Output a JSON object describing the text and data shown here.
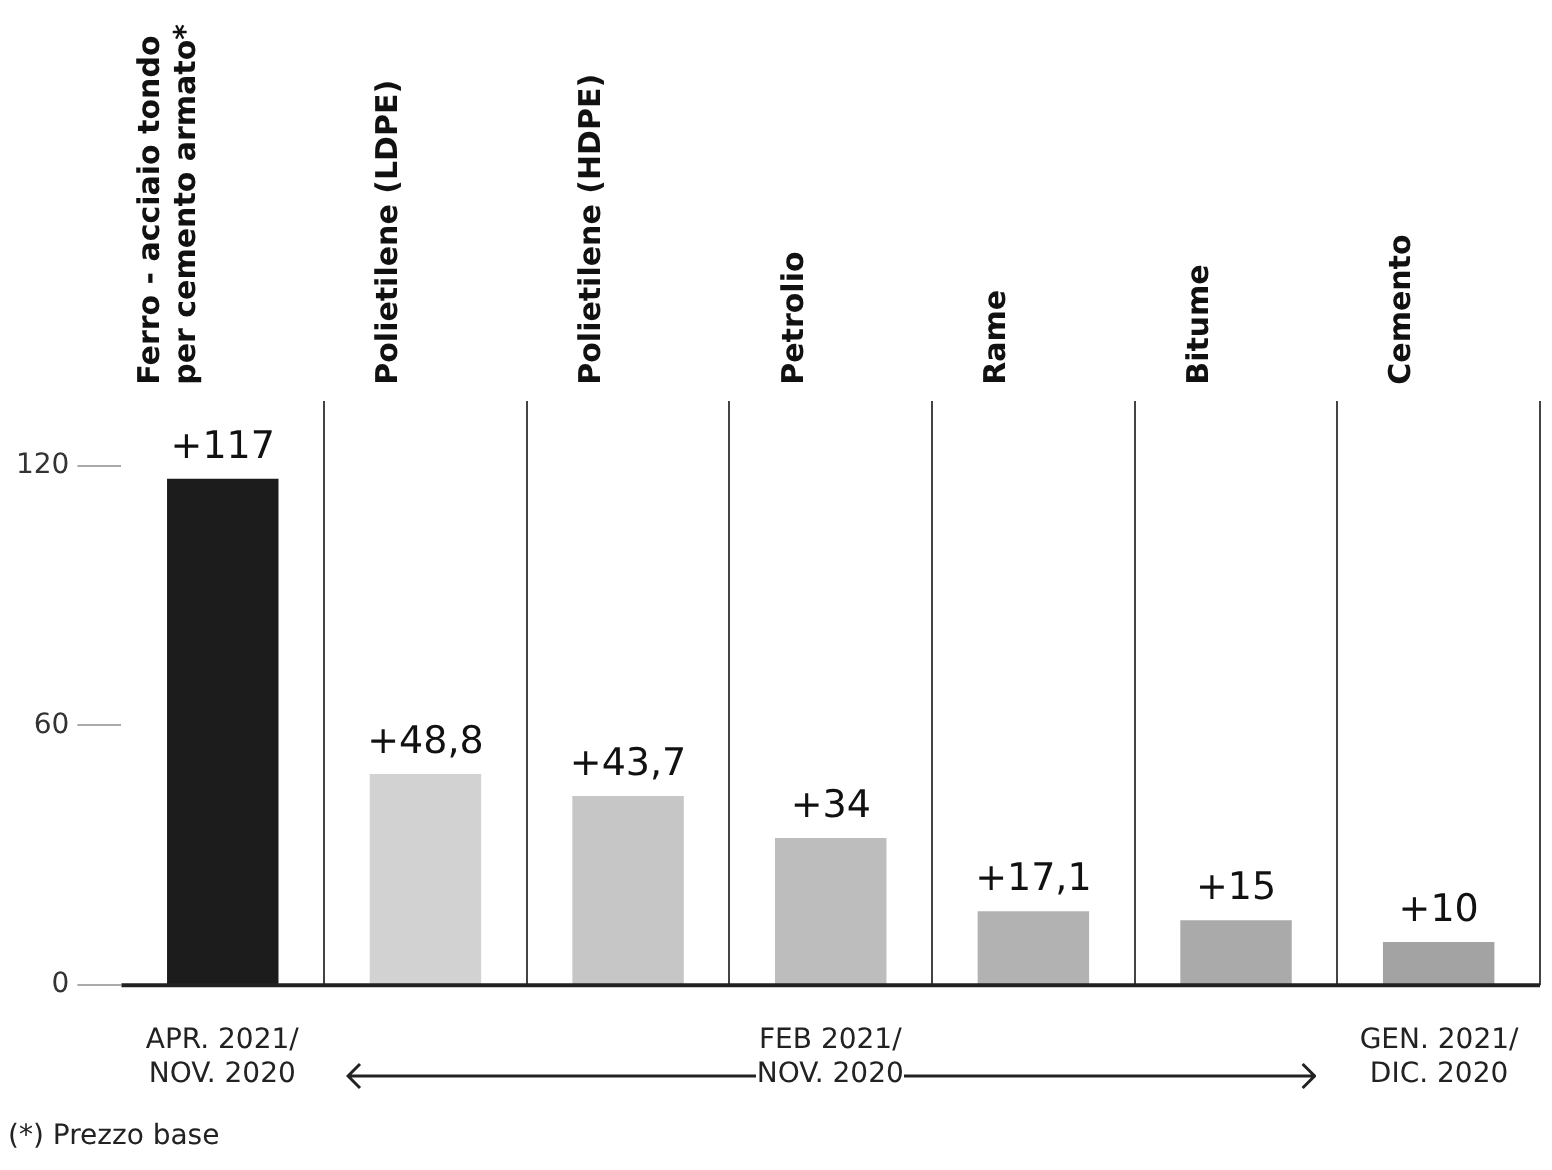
{
  "chart_data": {
    "type": "bar",
    "categories": [
      [
        "Ferro - acciaio tondo",
        "per cemento armato*"
      ],
      "Polietilene (LDPE)",
      "Polietilene (HDPE)",
      "Petrolio",
      "Rame",
      "Bitume",
      "Cemento"
    ],
    "values": [
      117,
      48.8,
      43.7,
      34,
      17.1,
      15,
      10
    ],
    "value_labels": [
      "+117",
      "+48,8",
      "+43,7",
      "+34",
      "+17,1",
      "+15",
      "+10"
    ],
    "colors": [
      "#1c1c1c",
      "#d2d2d2",
      "#c6c6c6",
      "#bdbdbd",
      "#b2b2b2",
      "#aaaaaa",
      "#a3a3a3"
    ],
    "ylim": [
      0,
      135
    ],
    "yticks": [
      0,
      60,
      120
    ],
    "grid": "x",
    "legend": false,
    "annotations": [
      "APR. 2021/\nNOV. 2020",
      "FEB 2021/\nNOV. 2020",
      "GEN. 2021/\nDIC. 2020",
      "(*) Prezzo base"
    ]
  }
}
